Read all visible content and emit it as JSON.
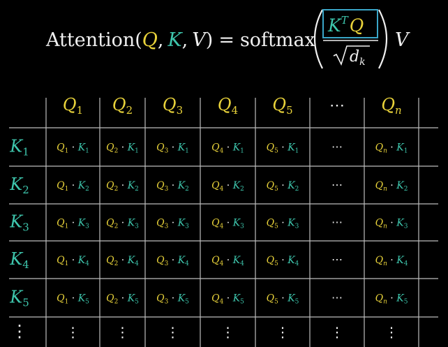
{
  "formula": {
    "lhs": "Attention(",
    "q": "Q",
    "comma1": ",",
    "k": "K",
    "comma2": ",",
    "v": "V",
    "close": ")",
    "eq": "=",
    "func": "softmax",
    "numerator_k": "K",
    "numerator_t": "T",
    "numerator_q": "Q",
    "denominator": "d",
    "denominator_sub": "k",
    "v_after": "V"
  },
  "table": {
    "q_headers": [
      {
        "base": "Q",
        "sub": "1"
      },
      {
        "base": "Q",
        "sub": "2"
      },
      {
        "base": "Q",
        "sub": "3"
      },
      {
        "base": "Q",
        "sub": "4"
      },
      {
        "base": "Q",
        "sub": "5"
      },
      {
        "base": "⋯",
        "sub": ""
      },
      {
        "base": "Q",
        "sub": "n"
      }
    ],
    "k_headers": [
      {
        "base": "K",
        "sub": "1"
      },
      {
        "base": "K",
        "sub": "2"
      },
      {
        "base": "K",
        "sub": "3"
      },
      {
        "base": "K",
        "sub": "4"
      },
      {
        "base": "K",
        "sub": "5"
      },
      {
        "base": "⋮",
        "sub": ""
      }
    ],
    "dot": "·",
    "ellipsis_h": "⋯",
    "ellipsis_v": "⋮"
  },
  "colors": {
    "q": "#e8d23a",
    "k": "#3ec6ad",
    "text": "#f0f0f0",
    "grid": "#bdbdbd",
    "box": "#3aa6c8"
  }
}
